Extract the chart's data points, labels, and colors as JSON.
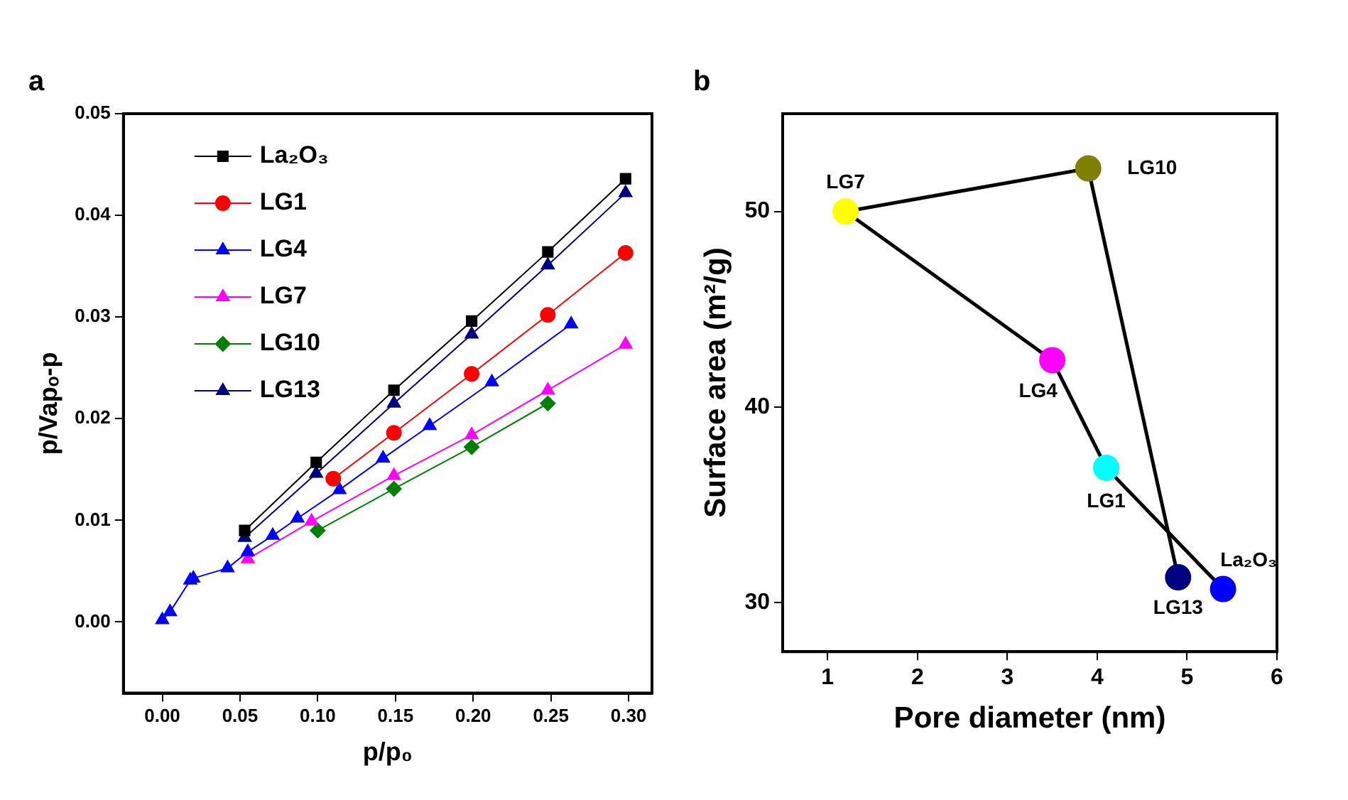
{
  "chart_data": [
    {
      "type": "line",
      "title": "a",
      "xlabel": "p/p₀",
      "ylabel": "p/Vapₒ-p",
      "legend": "top left",
      "grid": false,
      "line_style": "solid",
      "xlim": [
        -0.025,
        0.315
      ],
      "xticks": [
        {
          "value": 0,
          "label": "0.00"
        },
        {
          "value": 0.05,
          "label": "0.05"
        },
        {
          "value": 0.1,
          "label": "0.10"
        },
        {
          "value": 0.15,
          "label": "0.15"
        },
        {
          "value": 0.2,
          "label": "0.20"
        },
        {
          "value": 0.25,
          "label": "0.25"
        },
        {
          "value": 0.3,
          "label": "0.30"
        }
      ],
      "ylim": [
        -0.007,
        0.05
      ],
      "yticks": [
        {
          "value": 0,
          "label": "0.00"
        },
        {
          "value": 0.01,
          "label": "0.01"
        },
        {
          "value": 0.02,
          "label": "0.02"
        },
        {
          "value": 0.03,
          "label": "0.03"
        },
        {
          "value": 0.04,
          "label": "0.04"
        },
        {
          "value": 0.05,
          "label": "0.05"
        }
      ],
      "series": [
        {
          "name": "La₂O₃",
          "color": "#000000",
          "marker": "square",
          "x": [
            0.053,
            0.099,
            0.149,
            0.199,
            0.248,
            0.298
          ],
          "values": [
            0.009,
            0.0157,
            0.0228,
            0.0296,
            0.0364,
            0.0436
          ]
        },
        {
          "name": "LG1",
          "color": "#ff0000",
          "marker": "circle",
          "x": [
            0.11,
            0.149,
            0.199,
            0.248,
            0.298
          ],
          "values": [
            0.0141,
            0.0186,
            0.0244,
            0.0302,
            0.0363
          ]
        },
        {
          "name": "LG4",
          "color": "#0000ff",
          "marker": "triangle",
          "x": [
            0,
            0.005,
            0.018,
            0.02,
            0.042,
            0.055,
            0.071,
            0.087,
            0.114,
            0.142,
            0.172,
            0.212,
            0.263
          ],
          "values": [
            0.0002,
            0.001,
            0.0041,
            0.0043,
            0.0053,
            0.0069,
            0.0085,
            0.0102,
            0.013,
            0.0161,
            0.0193,
            0.0236,
            0.0293
          ]
        },
        {
          "name": "LG7",
          "color": "#ff00ff",
          "marker": "triangle",
          "x": [
            0.055,
            0.096,
            0.149,
            0.199,
            0.248,
            0.298
          ],
          "values": [
            0.0062,
            0.0099,
            0.0144,
            0.0184,
            0.0228,
            0.0273
          ]
        },
        {
          "name": "LG10",
          "color": "#008000",
          "marker": "diamond",
          "x": [
            0.1,
            0.149,
            0.199,
            0.248
          ],
          "values": [
            0.009,
            0.0131,
            0.0172,
            0.0215
          ]
        },
        {
          "name": "LG13",
          "color": "#000080",
          "marker": "triangle",
          "x": [
            0.053,
            0.099,
            0.149,
            0.199,
            0.248,
            0.298
          ],
          "values": [
            0.0083,
            0.0146,
            0.0215,
            0.0283,
            0.0351,
            0.0422
          ]
        }
      ]
    },
    {
      "type": "line",
      "title": "b",
      "xlabel": "Pore diameter (nm)",
      "ylabel": "Surface area (m²/g)",
      "legend": false,
      "grid": false,
      "marker": "circle",
      "line_style": "solid",
      "xlim": [
        0.5,
        6
      ],
      "xticks": [
        1,
        2,
        3,
        4,
        5,
        6
      ],
      "ylim": [
        27.5,
        55
      ],
      "yticks": [
        30,
        40,
        50
      ],
      "series": [
        {
          "color": "#000000",
          "colors": [
            "#000080",
            "#808000",
            "#ffff00",
            "#ff00ff",
            "#00ffff",
            "#0000ff"
          ],
          "x": [
            4.9,
            3.9,
            1.2,
            3.5,
            4.1,
            5.4
          ],
          "values": [
            31.3,
            52.2,
            50,
            42.4,
            36.9,
            30.7
          ]
        }
      ],
      "annotations": [
        {
          "text": "LG13",
          "x": 4.9,
          "y": 31.3
        },
        {
          "text": "LG10",
          "x": 3.9,
          "y": 52.2
        },
        {
          "text": "LG7",
          "x": 1.2,
          "y": 50
        },
        {
          "text": "LG4",
          "x": 3.5,
          "y": 42.4
        },
        {
          "text": "LG1",
          "x": 4.1,
          "y": 36.9
        },
        {
          "text": "La₂O₃",
          "x": 5.4,
          "y": 30.7
        }
      ]
    }
  ]
}
